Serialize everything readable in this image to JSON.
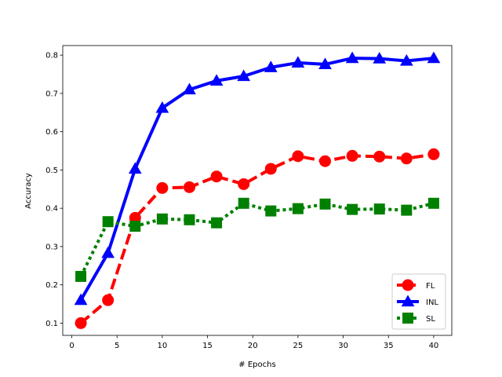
{
  "chart_data": {
    "type": "line",
    "title": "",
    "xlabel": "# Epochs",
    "ylabel": "Accuracy",
    "xlim": [
      -1,
      42
    ],
    "ylim": [
      0.068,
      0.825
    ],
    "xticks": [
      0,
      5,
      10,
      15,
      20,
      25,
      30,
      35,
      40
    ],
    "xtick_labels": [
      "0",
      "5",
      "10",
      "15",
      "20",
      "25",
      "30",
      "35",
      "40"
    ],
    "yticks": [
      0.1,
      0.2,
      0.3,
      0.4,
      0.5,
      0.6,
      0.7,
      0.8
    ],
    "ytick_labels": [
      "0.1",
      "0.2",
      "0.3",
      "0.4",
      "0.5",
      "0.6",
      "0.7",
      "0.8"
    ],
    "grid": false,
    "legend_position": "lower-right",
    "x": [
      1,
      4,
      7,
      10,
      13,
      16,
      19,
      22,
      25,
      28,
      31,
      34,
      37,
      40
    ],
    "series": [
      {
        "name": "FL",
        "color": "#ff0000",
        "line_style": "dashed",
        "marker": "circle",
        "values": [
          0.1,
          0.16,
          0.375,
          0.453,
          0.455,
          0.483,
          0.463,
          0.503,
          0.536,
          0.523,
          0.537,
          0.535,
          0.53,
          0.541
        ]
      },
      {
        "name": "INL",
        "color": "#0000ff",
        "line_style": "solid",
        "marker": "triangle",
        "values": [
          0.16,
          0.283,
          0.503,
          0.662,
          0.71,
          0.733,
          0.745,
          0.768,
          0.78,
          0.776,
          0.792,
          0.791,
          0.785,
          0.792
        ]
      },
      {
        "name": "SL",
        "color": "#008000",
        "line_style": "dotted",
        "marker": "square",
        "values": [
          0.222,
          0.365,
          0.353,
          0.372,
          0.37,
          0.362,
          0.413,
          0.393,
          0.399,
          0.411,
          0.397,
          0.398,
          0.395,
          0.413
        ]
      }
    ]
  }
}
